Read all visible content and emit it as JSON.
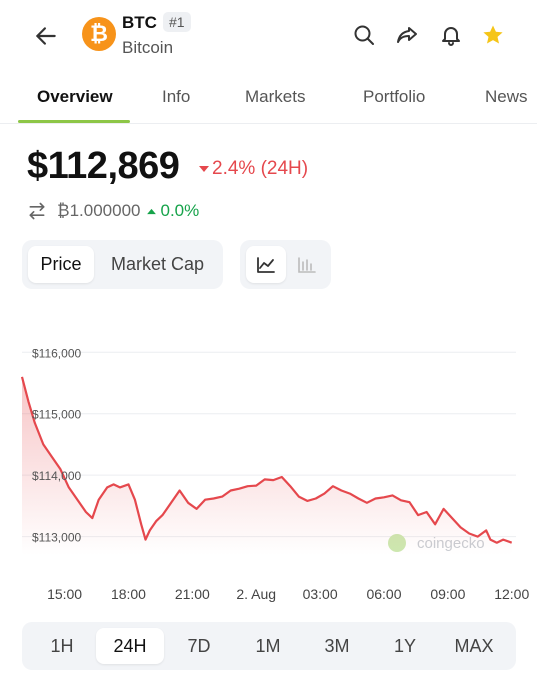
{
  "header": {
    "back_icon": "arrow-left-icon",
    "coin_logo_glyph": "₿",
    "symbol": "BTC",
    "rank": "#1",
    "name": "Bitcoin",
    "icons": [
      "search-icon",
      "share-icon",
      "bell-icon",
      "star-icon"
    ],
    "accent_color": "#f7931a",
    "star_color": "#f5c518"
  },
  "tabs": [
    "Overview",
    "Info",
    "Markets",
    "Portfolio",
    "News"
  ],
  "active_tab": "Overview",
  "price": {
    "value": "$112,869",
    "change": "2.4% (24H)",
    "change_direction": "down",
    "btc_value": "₿1.000000",
    "btc_change": "0.0%",
    "btc_change_direction": "up",
    "down_color": "#e5484d",
    "up_color": "#16a34a"
  },
  "metric_toggle": {
    "options": [
      "Price",
      "Market Cap"
    ],
    "selected": "Price"
  },
  "chart_type_toggle": {
    "options": [
      "line-chart-icon",
      "candlestick-icon"
    ],
    "selected": "line-chart-icon"
  },
  "chart_data": {
    "type": "area",
    "x_ticks": [
      "15:00",
      "18:00",
      "21:00",
      "2. Aug",
      "03:00",
      "06:00",
      "09:00",
      "12:00"
    ],
    "y_ticks": [
      "$116,000",
      "$115,000",
      "$114,000",
      "$113,000"
    ],
    "ylim": [
      112700,
      116200
    ],
    "xlim": [
      13.0,
      36.2
    ],
    "x": [
      13.0,
      13.3,
      13.6,
      14.0,
      14.4,
      14.8,
      15.2,
      15.6,
      16.0,
      16.3,
      16.6,
      17.0,
      17.3,
      17.6,
      18.0,
      18.3,
      18.6,
      18.8,
      19.0,
      19.3,
      19.6,
      20.0,
      20.4,
      20.8,
      21.2,
      21.6,
      22.0,
      22.4,
      22.8,
      23.2,
      23.6,
      24.0,
      24.4,
      24.8,
      25.2,
      25.6,
      26.0,
      26.4,
      26.8,
      27.2,
      27.6,
      28.0,
      28.4,
      28.8,
      29.2,
      29.6,
      30.0,
      30.4,
      30.8,
      31.2,
      31.6,
      32.0,
      32.4,
      32.8,
      33.2,
      33.6,
      34.0,
      34.4,
      34.8,
      35.0,
      35.3,
      35.6,
      36.0
    ],
    "y": [
      115600,
      115200,
      114850,
      114500,
      114300,
      114100,
      113800,
      113600,
      113400,
      113300,
      113600,
      113800,
      113850,
      113800,
      113850,
      113600,
      113200,
      112950,
      113100,
      113250,
      113350,
      113550,
      113750,
      113550,
      113450,
      113600,
      113620,
      113650,
      113750,
      113780,
      113820,
      113830,
      113930,
      113920,
      113970,
      113820,
      113650,
      113580,
      113620,
      113700,
      113820,
      113750,
      113700,
      113620,
      113550,
      113620,
      113640,
      113670,
      113590,
      113560,
      113350,
      113400,
      113200,
      113450,
      113300,
      113150,
      113050,
      113000,
      113100,
      112950,
      112900,
      112950,
      112900
    ],
    "line_color": "#e5484d",
    "fill_color": "#e5484d",
    "grid": true,
    "watermark": "coingecko"
  },
  "time_ranges": [
    "1H",
    "24H",
    "7D",
    "1M",
    "3M",
    "1Y",
    "MAX"
  ],
  "selected_range": "24H"
}
